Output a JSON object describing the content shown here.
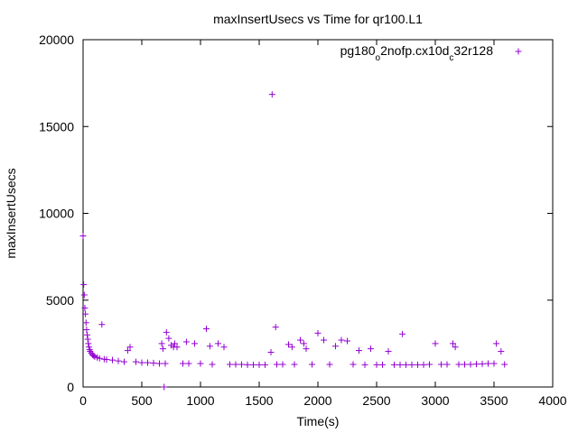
{
  "chart_data": {
    "type": "scatter",
    "title": "maxInsertUsecs vs Time for qr100.L1",
    "xlabel": "Time(s)",
    "ylabel": "maxInsertUsecs",
    "xlim": [
      0,
      4000
    ],
    "ylim": [
      0,
      20000
    ],
    "xticks": [
      "0",
      "500",
      "1000",
      "1500",
      "2000",
      "2500",
      "3000",
      "3500",
      "4000"
    ],
    "yticks": [
      "0",
      "5000",
      "10000",
      "15000",
      "20000"
    ],
    "grid": false,
    "legend_position": "top-right",
    "marker": "+",
    "color": "#9400d3",
    "series": [
      {
        "name": "pg180_o2nofp.cx10d_c32r128",
        "legend_parts": [
          {
            "text": "pg180",
            "shift": "none"
          },
          {
            "text": "o",
            "shift": "sub"
          },
          {
            "text": "2nofp.cx10d",
            "shift": "none"
          },
          {
            "text": "c",
            "shift": "sub"
          },
          {
            "text": "32r128",
            "shift": "none"
          }
        ],
        "points": [
          [
            0,
            8700
          ],
          [
            5,
            5900
          ],
          [
            10,
            5300
          ],
          [
            15,
            4550
          ],
          [
            20,
            4200
          ],
          [
            25,
            3700
          ],
          [
            30,
            3300
          ],
          [
            35,
            3000
          ],
          [
            40,
            2750
          ],
          [
            45,
            2500
          ],
          [
            50,
            2300
          ],
          [
            55,
            2150
          ],
          [
            60,
            2050
          ],
          [
            70,
            1950
          ],
          [
            80,
            1850
          ],
          [
            90,
            1800
          ],
          [
            100,
            1750
          ],
          [
            120,
            1700
          ],
          [
            140,
            1650
          ],
          [
            160,
            3600
          ],
          [
            180,
            1600
          ],
          [
            200,
            1580
          ],
          [
            250,
            1550
          ],
          [
            300,
            1500
          ],
          [
            350,
            1450
          ],
          [
            380,
            2100
          ],
          [
            400,
            2300
          ],
          [
            450,
            1450
          ],
          [
            500,
            1400
          ],
          [
            550,
            1400
          ],
          [
            600,
            1380
          ],
          [
            650,
            1350
          ],
          [
            670,
            2500
          ],
          [
            680,
            2200
          ],
          [
            690,
            0
          ],
          [
            700,
            1350
          ],
          [
            710,
            3150
          ],
          [
            730,
            2800
          ],
          [
            750,
            2400
          ],
          [
            770,
            2300
          ],
          [
            780,
            2500
          ],
          [
            800,
            2300
          ],
          [
            850,
            1350
          ],
          [
            880,
            2600
          ],
          [
            900,
            1350
          ],
          [
            950,
            2500
          ],
          [
            1000,
            1350
          ],
          [
            1050,
            3350
          ],
          [
            1080,
            2350
          ],
          [
            1100,
            1300
          ],
          [
            1150,
            2500
          ],
          [
            1200,
            2300
          ],
          [
            1250,
            1300
          ],
          [
            1300,
            1300
          ],
          [
            1350,
            1300
          ],
          [
            1400,
            1280
          ],
          [
            1450,
            1280
          ],
          [
            1500,
            1280
          ],
          [
            1550,
            1280
          ],
          [
            1600,
            2000
          ],
          [
            1610,
            16850
          ],
          [
            1640,
            3450
          ],
          [
            1650,
            1300
          ],
          [
            1700,
            1300
          ],
          [
            1750,
            2450
          ],
          [
            1780,
            2300
          ],
          [
            1800,
            1300
          ],
          [
            1850,
            2700
          ],
          [
            1880,
            2500
          ],
          [
            1900,
            2200
          ],
          [
            1950,
            1300
          ],
          [
            2000,
            3100
          ],
          [
            2050,
            2700
          ],
          [
            2100,
            1300
          ],
          [
            2150,
            2350
          ],
          [
            2200,
            2700
          ],
          [
            2250,
            2650
          ],
          [
            2300,
            1300
          ],
          [
            2350,
            2100
          ],
          [
            2400,
            1280
          ],
          [
            2450,
            2200
          ],
          [
            2500,
            1280
          ],
          [
            2550,
            1280
          ],
          [
            2600,
            2050
          ],
          [
            2650,
            1280
          ],
          [
            2700,
            1280
          ],
          [
            2720,
            3050
          ],
          [
            2750,
            1280
          ],
          [
            2800,
            1280
          ],
          [
            2850,
            1280
          ],
          [
            2900,
            1280
          ],
          [
            2950,
            1300
          ],
          [
            3000,
            2500
          ],
          [
            3050,
            1300
          ],
          [
            3100,
            1300
          ],
          [
            3150,
            2500
          ],
          [
            3170,
            2300
          ],
          [
            3200,
            1300
          ],
          [
            3250,
            1300
          ],
          [
            3300,
            1300
          ],
          [
            3350,
            1320
          ],
          [
            3400,
            1330
          ],
          [
            3450,
            1350
          ],
          [
            3500,
            1350
          ],
          [
            3520,
            2500
          ],
          [
            3560,
            2050
          ],
          [
            3590,
            1300
          ]
        ]
      }
    ]
  }
}
